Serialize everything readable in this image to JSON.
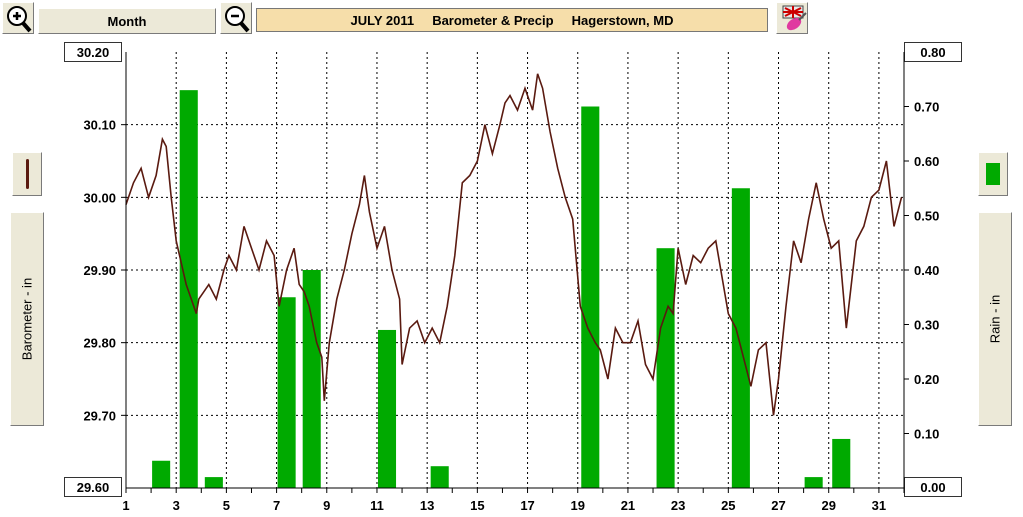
{
  "toolbar": {
    "month_label": "Month",
    "title": "JULY 2011     Barometer & Precip     Hagerstown, MD"
  },
  "left_axis": {
    "label": "Barometer - in",
    "top_value": "30.20",
    "bottom_value": "29.60"
  },
  "right_axis": {
    "label": "Rain - in",
    "top_value": "0.80",
    "bottom_value": "0.00"
  },
  "colors": {
    "barometer": "#5a1a10",
    "rain": "#00aa00",
    "title_bg": "#f6deaa"
  },
  "chart_data": {
    "type": "bar+line",
    "x_label": "",
    "x_range": [
      1,
      32
    ],
    "x_ticks": [
      "1",
      "3",
      "5",
      "7",
      "9",
      "11",
      "13",
      "15",
      "17",
      "19",
      "21",
      "23",
      "25",
      "27",
      "29",
      "31"
    ],
    "left_ylim": [
      29.6,
      30.2
    ],
    "left_ticks": [
      "30.10",
      "30.00",
      "29.90",
      "29.80",
      "29.70"
    ],
    "right_ylim": [
      0.0,
      0.8
    ],
    "right_ticks": [
      "0.70",
      "0.60",
      "0.50",
      "0.40",
      "0.30",
      "0.20",
      "0.10"
    ],
    "grid": true,
    "series": [
      {
        "name": "Barometer",
        "axis": "left",
        "x": [
          1.0,
          1.3,
          1.6,
          1.9,
          2.2,
          2.45,
          2.6,
          2.8,
          3.0,
          3.2,
          3.4,
          3.6,
          3.8,
          3.9,
          4.1,
          4.3,
          4.6,
          4.9,
          5.1,
          5.4,
          5.7,
          6.0,
          6.3,
          6.6,
          6.9,
          7.1,
          7.4,
          7.7,
          7.9,
          8.1,
          8.3,
          8.6,
          8.8,
          8.9,
          9.1,
          9.4,
          9.7,
          10.0,
          10.3,
          10.5,
          10.7,
          11.0,
          11.3,
          11.6,
          11.9,
          12.0,
          12.3,
          12.6,
          12.9,
          13.2,
          13.5,
          13.8,
          14.1,
          14.4,
          14.7,
          15.0,
          15.3,
          15.6,
          15.9,
          16.1,
          16.3,
          16.6,
          16.9,
          17.2,
          17.4,
          17.6,
          17.9,
          18.2,
          18.5,
          18.8,
          19.1,
          19.4,
          19.7,
          19.9,
          20.2,
          20.5,
          20.8,
          21.1,
          21.4,
          21.7,
          22.0,
          22.3,
          22.6,
          22.8,
          23.0,
          23.3,
          23.6,
          23.9,
          24.2,
          24.5,
          24.8,
          25.0,
          25.3,
          25.6,
          25.9,
          26.2,
          26.5,
          26.8,
          27.0,
          27.3,
          27.6,
          27.9,
          28.2,
          28.5,
          28.8,
          29.1,
          29.4,
          29.7,
          29.9,
          30.1,
          30.4,
          30.7,
          31.0,
          31.3,
          31.6,
          31.9
        ],
        "values": [
          29.99,
          30.02,
          30.04,
          30.0,
          30.03,
          30.08,
          30.07,
          30.0,
          29.94,
          29.91,
          29.88,
          29.86,
          29.84,
          29.86,
          29.87,
          29.88,
          29.86,
          29.9,
          29.92,
          29.9,
          29.96,
          29.93,
          29.9,
          29.94,
          29.92,
          29.85,
          29.9,
          29.93,
          29.88,
          29.87,
          29.85,
          29.8,
          29.78,
          29.72,
          29.8,
          29.86,
          29.9,
          29.95,
          29.99,
          30.03,
          29.98,
          29.93,
          29.96,
          29.9,
          29.86,
          29.77,
          29.82,
          29.83,
          29.8,
          29.82,
          29.8,
          29.85,
          29.92,
          30.02,
          30.03,
          30.05,
          30.1,
          30.06,
          30.1,
          30.13,
          30.14,
          30.12,
          30.15,
          30.12,
          30.17,
          30.15,
          30.09,
          30.04,
          30.0,
          29.97,
          29.85,
          29.82,
          29.8,
          29.79,
          29.75,
          29.82,
          29.8,
          29.8,
          29.83,
          29.77,
          29.75,
          29.82,
          29.85,
          29.84,
          29.93,
          29.88,
          29.92,
          29.91,
          29.93,
          29.94,
          29.88,
          29.84,
          29.82,
          29.78,
          29.74,
          29.79,
          29.8,
          29.7,
          29.75,
          29.85,
          29.94,
          29.91,
          29.97,
          30.02,
          29.97,
          29.93,
          29.94,
          29.82,
          29.88,
          29.94,
          29.96,
          30.0,
          30.01,
          30.05,
          29.96,
          30.0
        ]
      },
      {
        "name": "Rain",
        "axis": "right",
        "x": [
          2.4,
          3.5,
          4.5,
          7.4,
          8.4,
          11.4,
          13.5,
          19.5,
          22.5,
          25.5,
          28.4,
          29.5
        ],
        "values": [
          0.05,
          0.73,
          0.02,
          0.35,
          0.4,
          0.29,
          0.04,
          0.7,
          0.44,
          0.55,
          0.02,
          0.09
        ]
      }
    ]
  }
}
